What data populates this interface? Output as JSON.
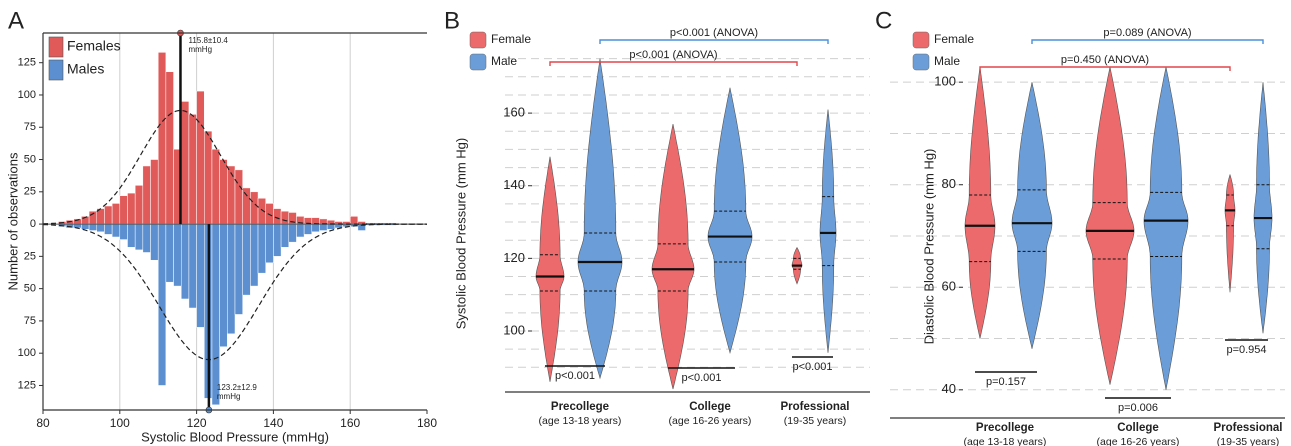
{
  "chart_data": [
    {
      "type": "histogram",
      "panel": "A",
      "xlabel": "Systolic Blood Pressure (mmHg)",
      "ylabel": "Number of observations",
      "bins": [
        84,
        86,
        88,
        90,
        92,
        94,
        96,
        98,
        100,
        102,
        104,
        106,
        108,
        110,
        112,
        114,
        116,
        118,
        120,
        122,
        124,
        126,
        128,
        130,
        132,
        134,
        136,
        138,
        140,
        142,
        144,
        146,
        148,
        150,
        152,
        154,
        156,
        158,
        160,
        162,
        164,
        166,
        168,
        170,
        172
      ],
      "series": [
        {
          "name": "Females",
          "color": "#e05a5a",
          "values": [
            2,
            3,
            4,
            6,
            10,
            12,
            14,
            16,
            22,
            24,
            30,
            45,
            50,
            133,
            118,
            58,
            95,
            85,
            103,
            72,
            58,
            50,
            45,
            42,
            28,
            25,
            20,
            16,
            12,
            10,
            9,
            6,
            5,
            5,
            4,
            3,
            2,
            2,
            6,
            2,
            1,
            1,
            1,
            1
          ]
        },
        {
          "name": "Males",
          "color": "#5b8fd0",
          "values": [
            -2,
            -3,
            -3,
            -4,
            -5,
            -6,
            -8,
            -10,
            -12,
            -18,
            -20,
            -22,
            -28,
            -125,
            -45,
            -48,
            -58,
            -65,
            -80,
            -135,
            -140,
            -95,
            -85,
            -70,
            -55,
            -48,
            -38,
            -30,
            -25,
            -18,
            -14,
            -10,
            -8,
            -6,
            -5,
            -4,
            -3,
            -2,
            -2,
            -5,
            -1,
            -1,
            -1,
            -1
          ]
        }
      ],
      "fits": [
        {
          "mean": 115.8,
          "sd": 10.4,
          "peak": 88,
          "label": [
            "115.8±10.4",
            "mmHg"
          ]
        },
        {
          "mean": 123.2,
          "sd": 12.9,
          "peak": -105,
          "label": [
            "123.2±12.9",
            "mmHg"
          ]
        }
      ],
      "xlim": [
        80,
        180
      ],
      "xticks": [
        80,
        100,
        120,
        140,
        160,
        180
      ],
      "ylim": [
        -144,
        148
      ],
      "yticks": [
        {
          "value": -125,
          "label": "125"
        },
        {
          "value": -100,
          "label": "100"
        },
        {
          "value": -75,
          "label": "75"
        },
        {
          "value": -50,
          "label": "50"
        },
        {
          "value": -25,
          "label": "25"
        },
        0,
        25,
        50,
        75,
        100,
        125
      ],
      "grid": "x",
      "legend": "upper left"
    },
    {
      "type": "violin",
      "panel": "B",
      "ylabel": "Systolic Blood Pressure (mm Hg)",
      "categories": [
        "Precollege",
        "College",
        "Professional"
      ],
      "category_notes": [
        "(age 13-18 years)",
        "(age 16-26 years)",
        "(19-35 years)"
      ],
      "series": [
        {
          "name": "Female",
          "color": "#ec6a6c",
          "min": [
            86,
            84,
            113
          ],
          "q1": [
            111,
            111,
            117
          ],
          "median": [
            115,
            117,
            118
          ],
          "q3": [
            121,
            124,
            120
          ],
          "max": [
            148,
            157,
            123
          ]
        },
        {
          "name": "Male",
          "color": "#6b9ed9",
          "min": [
            87,
            94,
            94
          ],
          "q1": [
            111,
            119,
            118
          ],
          "median": [
            119,
            126,
            127
          ],
          "q3": [
            127,
            133,
            137
          ],
          "max": [
            175,
            167,
            161
          ]
        }
      ],
      "group_tests": [
        "p<0.001",
        "p<0.001",
        "p<0.001"
      ],
      "anova": [
        "p<0.001 (ANOVA)",
        "p<0.001 (ANOVA)"
      ],
      "ylim": [
        83.2,
        176
      ],
      "yticks": [
        100,
        120,
        140,
        160
      ],
      "grid_lines": [
        90,
        95,
        100,
        105,
        110,
        115,
        120,
        125,
        130,
        135,
        140,
        145,
        150,
        155,
        160,
        165,
        170,
        175
      ],
      "legend": "upper left"
    },
    {
      "type": "violin",
      "panel": "C",
      "ylabel": "Diastolic Blood Pressure (mm Hg)",
      "categories": [
        "Precollege",
        "College",
        "Professional"
      ],
      "category_notes": [
        "(age 13-18 years)",
        "(age 16-26 years)",
        "(19-35 years)"
      ],
      "series": [
        {
          "name": "Female",
          "color": "#ec6a6c",
          "min": [
            50,
            41,
            59
          ],
          "q1": [
            65,
            65.5,
            72
          ],
          "median": [
            72,
            71,
            75
          ],
          "q3": [
            78,
            76.5,
            78
          ],
          "max": [
            103,
            103,
            82
          ]
        },
        {
          "name": "Male",
          "color": "#6b9ed9",
          "min": [
            48,
            40,
            51
          ],
          "q1": [
            67,
            66,
            67.5
          ],
          "median": [
            72.5,
            73,
            73.5
          ],
          "q3": [
            79,
            78.5,
            80
          ],
          "max": [
            100,
            103,
            100
          ]
        }
      ],
      "group_tests": [
        "p=0.157",
        "p=0.006",
        "p=0.954"
      ],
      "anova": [
        "p=0.450 (ANOVA)",
        "p=0.089 (ANOVA)"
      ],
      "ylim": [
        34.5,
        105.3
      ],
      "yticks": [
        40,
        60,
        80,
        100
      ],
      "grid_lines": [
        40,
        50,
        60,
        70,
        80,
        90,
        100
      ],
      "legend": "upper left"
    }
  ]
}
